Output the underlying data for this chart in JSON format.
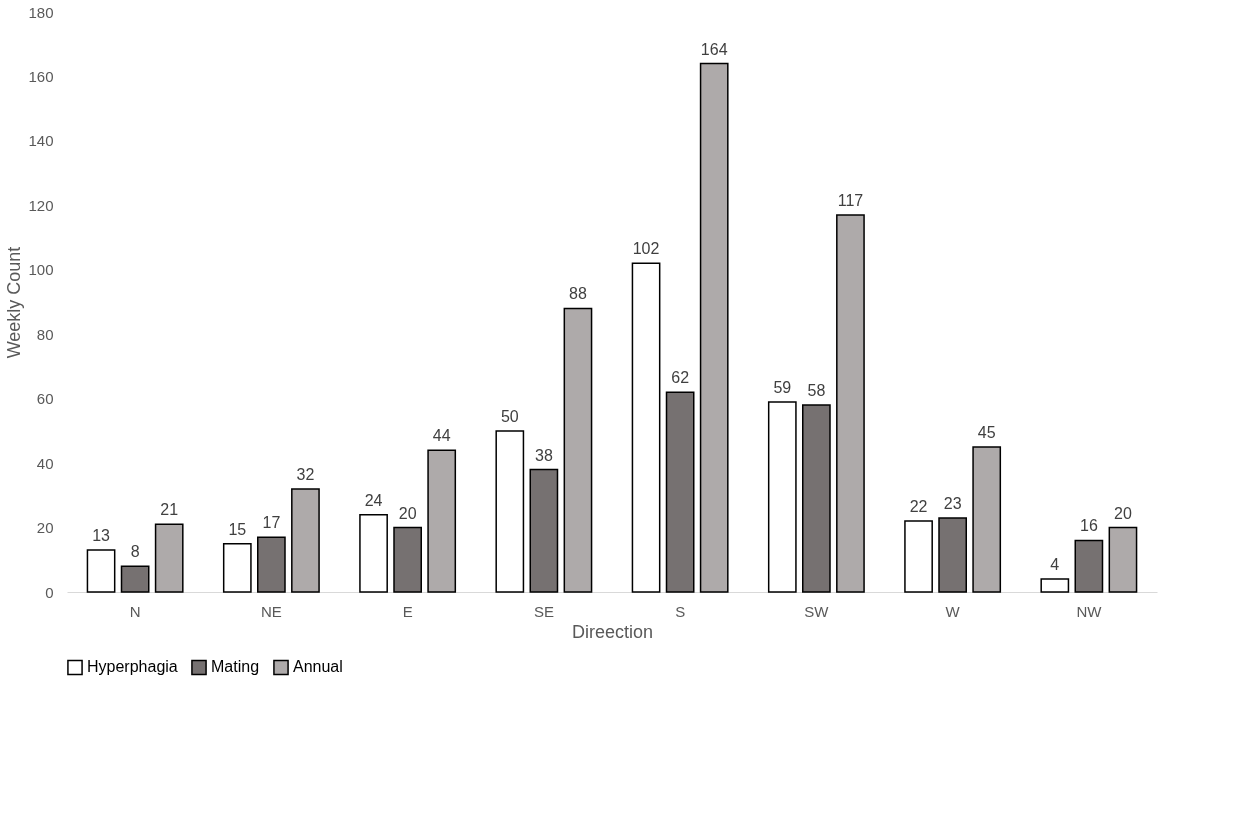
{
  "chart_data": {
    "type": "bar",
    "xlabel": "Direection",
    "ylabel": "Weekly Count",
    "categories": [
      "N",
      "NE",
      "E",
      "SE",
      "S",
      "SW",
      "W",
      "NW"
    ],
    "series": [
      {
        "name": "Hyperphagia",
        "color": "#ffffff",
        "values": [
          13,
          15,
          24,
          50,
          102,
          59,
          22,
          4
        ]
      },
      {
        "name": "Mating",
        "color": "#767171",
        "values": [
          8,
          17,
          20,
          38,
          62,
          58,
          23,
          16
        ]
      },
      {
        "name": "Annual",
        "color": "#aeaaaa",
        "values": [
          21,
          32,
          44,
          88,
          164,
          117,
          45,
          20
        ]
      }
    ],
    "ylim": [
      0,
      180
    ],
    "yticks": [
      0,
      20,
      40,
      60,
      80,
      100,
      120,
      140,
      160,
      180
    ],
    "grid": false,
    "legend": "bottom",
    "data_labels": true
  }
}
